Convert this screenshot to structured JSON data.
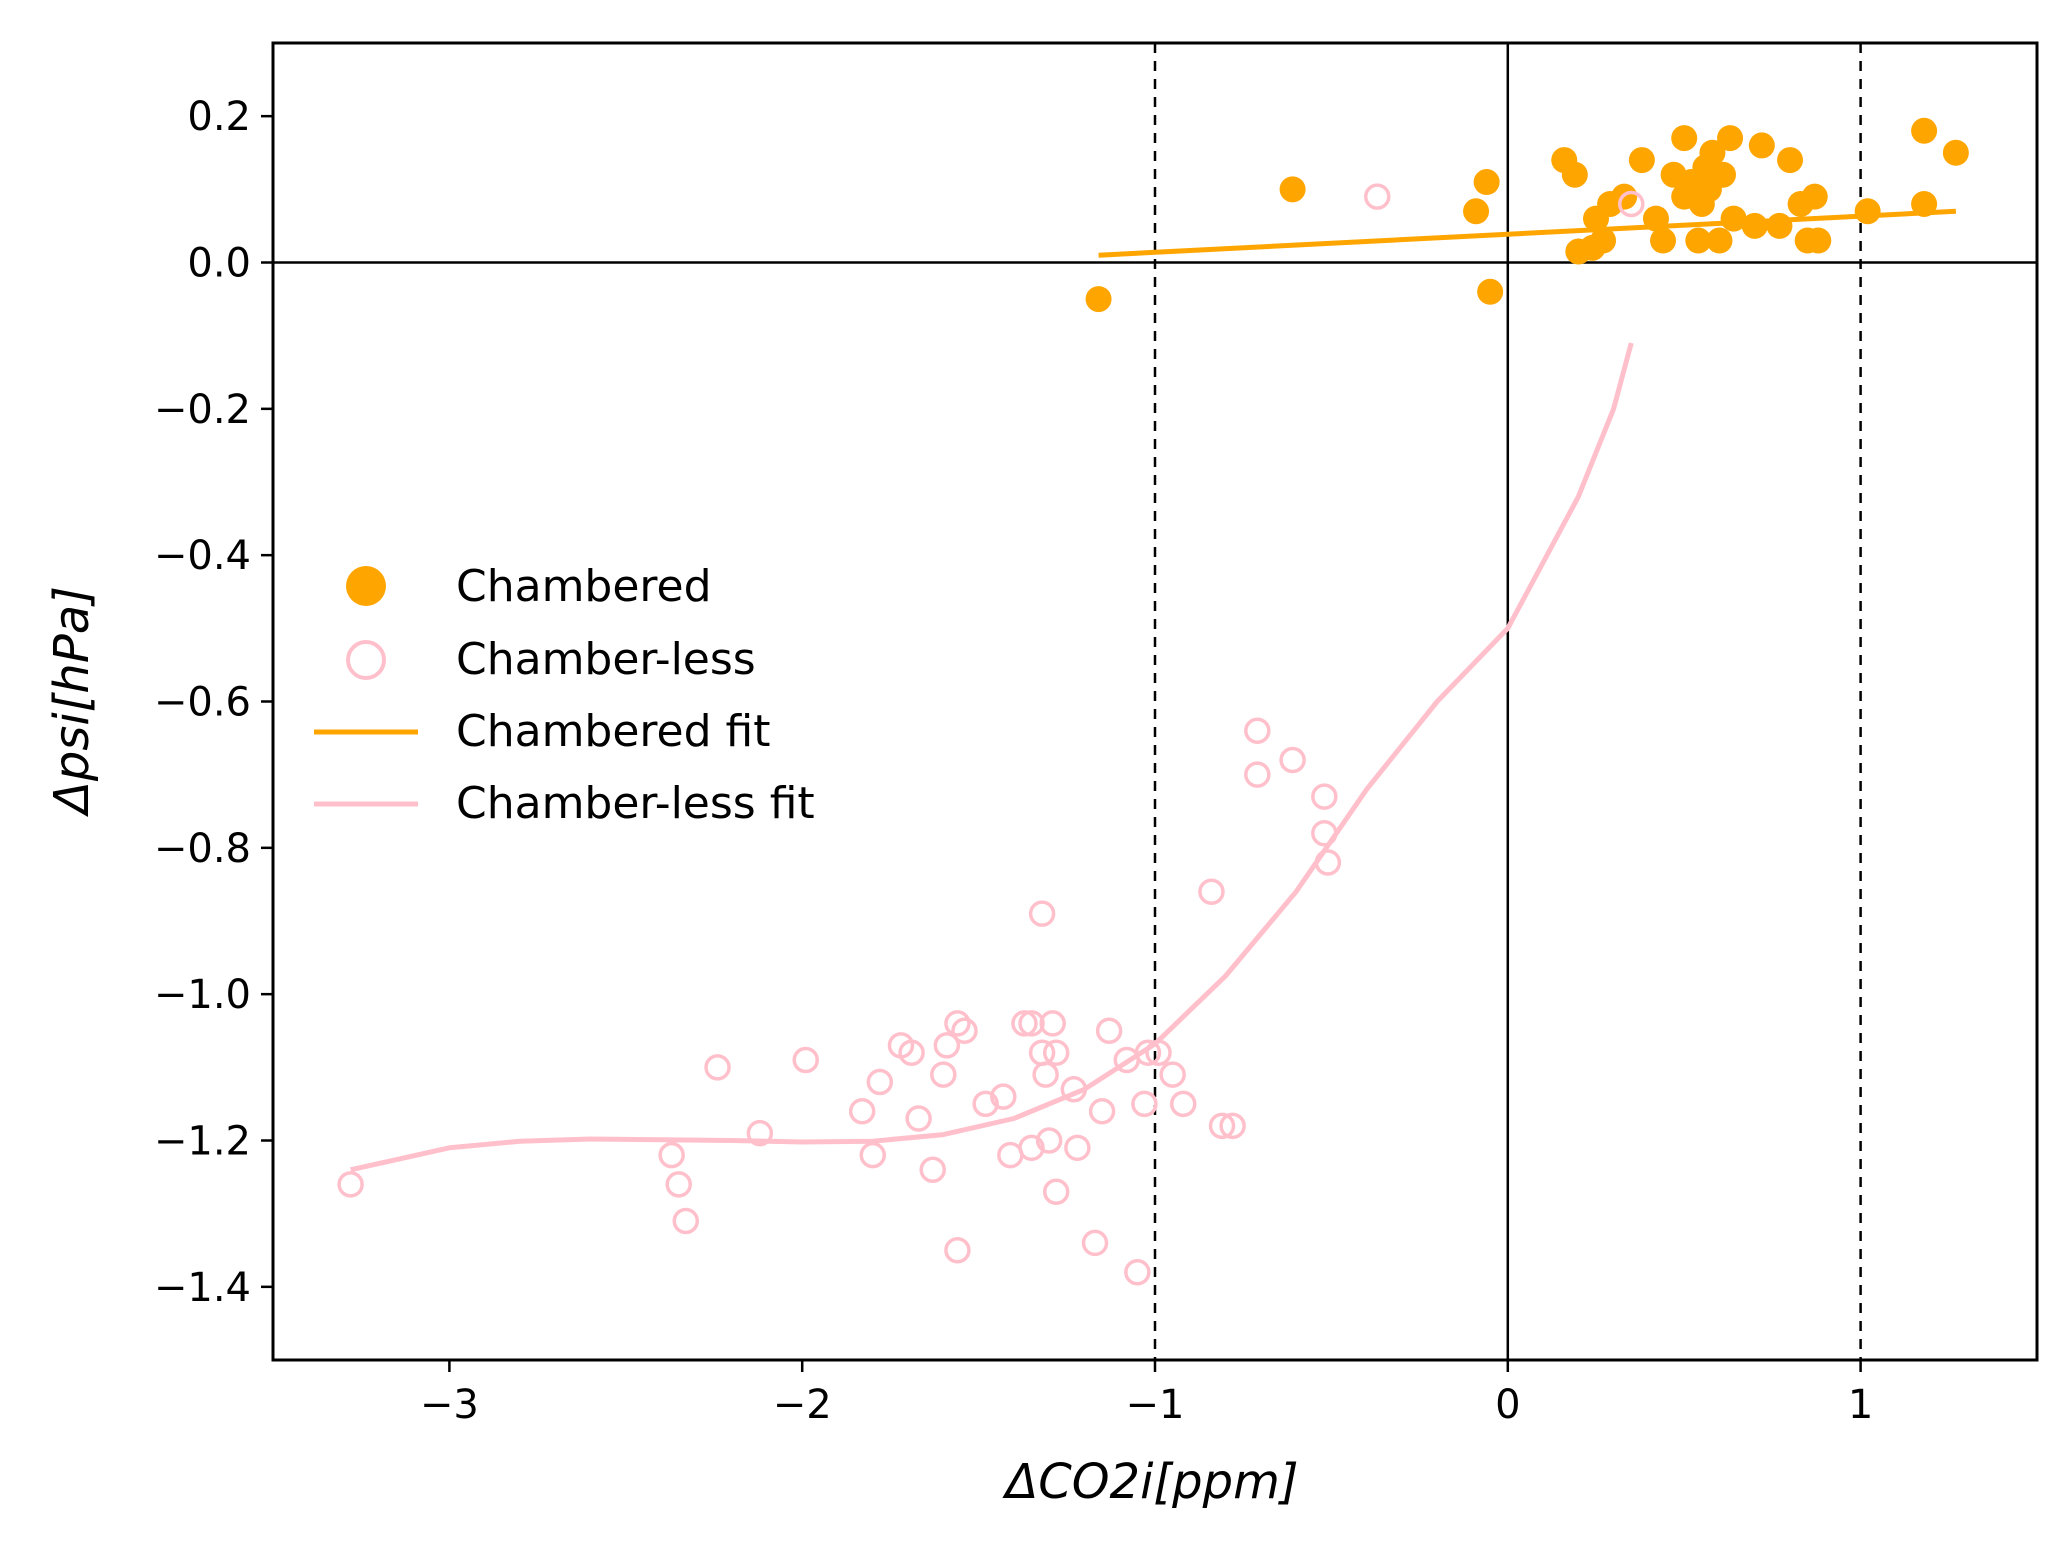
{
  "chart_data": {
    "type": "scatter",
    "xlabel": "ΔCO2i[ppm]",
    "ylabel": "Δpsi[hPa]",
    "xlim": [
      -3.5,
      1.5
    ],
    "ylim": [
      -1.5,
      0.3
    ],
    "x_ticks": [
      -3,
      -2,
      -1,
      0,
      1
    ],
    "x_tick_labels": [
      "−3",
      "−2",
      "−1",
      "0",
      "1"
    ],
    "y_ticks": [
      0.2,
      0.0,
      -0.2,
      -0.4,
      -0.6,
      -0.8,
      -1.0,
      -1.2,
      -1.4
    ],
    "y_tick_labels": [
      "0.2",
      "0.0",
      "−0.2",
      "−0.4",
      "−0.6",
      "−0.8",
      "−1.0",
      "−1.2",
      "−1.4"
    ],
    "grid": false,
    "reference_lines": {
      "vertical_solid": [
        0
      ],
      "horizontal_solid": [
        0
      ],
      "vertical_dashed": [
        -1,
        1
      ]
    },
    "legend_position": "center-left",
    "series": [
      {
        "name": "Chambered",
        "kind": "scatter",
        "marker": "filled-circle",
        "color": "#FFA500",
        "points": [
          [
            -1.16,
            -0.05
          ],
          [
            -0.61,
            0.1
          ],
          [
            -0.09,
            0.07
          ],
          [
            -0.06,
            0.11
          ],
          [
            -0.05,
            -0.04
          ],
          [
            0.16,
            0.14
          ],
          [
            0.19,
            0.12
          ],
          [
            0.2,
            0.015
          ],
          [
            0.24,
            0.02
          ],
          [
            0.25,
            0.06
          ],
          [
            0.27,
            0.03
          ],
          [
            0.29,
            0.08
          ],
          [
            0.33,
            0.09
          ],
          [
            0.38,
            0.14
          ],
          [
            0.42,
            0.06
          ],
          [
            0.44,
            0.03
          ],
          [
            0.47,
            0.12
          ],
          [
            0.5,
            0.17
          ],
          [
            0.5,
            0.09
          ],
          [
            0.52,
            0.11
          ],
          [
            0.54,
            0.03
          ],
          [
            0.55,
            0.08
          ],
          [
            0.56,
            0.13
          ],
          [
            0.57,
            0.1
          ],
          [
            0.58,
            0.15
          ],
          [
            0.6,
            0.03
          ],
          [
            0.61,
            0.12
          ],
          [
            0.63,
            0.17
          ],
          [
            0.64,
            0.06
          ],
          [
            0.7,
            0.05
          ],
          [
            0.72,
            0.16
          ],
          [
            0.77,
            0.05
          ],
          [
            0.8,
            0.14
          ],
          [
            0.83,
            0.08
          ],
          [
            0.85,
            0.03
          ],
          [
            0.87,
            0.09
          ],
          [
            0.88,
            0.03
          ],
          [
            1.02,
            0.07
          ],
          [
            1.18,
            0.08
          ],
          [
            1.18,
            0.18
          ],
          [
            1.27,
            0.15
          ]
        ]
      },
      {
        "name": "Chamber-less",
        "kind": "scatter",
        "marker": "open-circle",
        "color": "#FFC0CB",
        "points": [
          [
            -3.28,
            -1.26
          ],
          [
            -2.37,
            -1.22
          ],
          [
            -2.35,
            -1.26
          ],
          [
            -2.33,
            -1.31
          ],
          [
            -2.24,
            -1.1
          ],
          [
            -2.12,
            -1.19
          ],
          [
            -1.99,
            -1.09
          ],
          [
            -1.83,
            -1.16
          ],
          [
            -1.8,
            -1.22
          ],
          [
            -1.78,
            -1.12
          ],
          [
            -1.72,
            -1.07
          ],
          [
            -1.69,
            -1.08
          ],
          [
            -1.67,
            -1.17
          ],
          [
            -1.63,
            -1.24
          ],
          [
            -1.6,
            -1.11
          ],
          [
            -1.59,
            -1.07
          ],
          [
            -1.56,
            -1.35
          ],
          [
            -1.56,
            -1.04
          ],
          [
            -1.54,
            -1.05
          ],
          [
            -1.48,
            -1.15
          ],
          [
            -1.43,
            -1.14
          ],
          [
            -1.41,
            -1.22
          ],
          [
            -1.37,
            -1.04
          ],
          [
            -1.35,
            -1.04
          ],
          [
            -1.35,
            -1.21
          ],
          [
            -1.32,
            -0.89
          ],
          [
            -1.32,
            -1.08
          ],
          [
            -1.31,
            -1.11
          ],
          [
            -1.3,
            -1.2
          ],
          [
            -1.29,
            -1.04
          ],
          [
            -1.28,
            -1.08
          ],
          [
            -1.28,
            -1.27
          ],
          [
            -1.23,
            -1.13
          ],
          [
            -1.22,
            -1.21
          ],
          [
            -1.17,
            -1.34
          ],
          [
            -1.15,
            -1.16
          ],
          [
            -1.13,
            -1.05
          ],
          [
            -1.08,
            -1.09
          ],
          [
            -1.05,
            -1.38
          ],
          [
            -1.03,
            -1.15
          ],
          [
            -1.02,
            -1.08
          ],
          [
            -0.99,
            -1.08
          ],
          [
            -0.95,
            -1.11
          ],
          [
            -0.92,
            -1.15
          ],
          [
            -0.84,
            -0.86
          ],
          [
            -0.81,
            -1.18
          ],
          [
            -0.78,
            -1.18
          ],
          [
            -0.71,
            -0.64
          ],
          [
            -0.71,
            -0.7
          ],
          [
            -0.61,
            -0.68
          ],
          [
            -0.52,
            -0.73
          ],
          [
            -0.52,
            -0.78
          ],
          [
            -0.51,
            -0.82
          ],
          [
            -0.37,
            0.09
          ],
          [
            0.35,
            0.08
          ]
        ]
      },
      {
        "name": "Chambered fit",
        "kind": "line",
        "color": "#FFA500",
        "points": [
          [
            -1.16,
            0.01
          ],
          [
            1.27,
            0.07
          ]
        ]
      },
      {
        "name": "Chamber-less fit",
        "kind": "line",
        "color": "#FFC0CB",
        "points": [
          [
            -3.28,
            -1.24
          ],
          [
            -3.0,
            -1.21
          ],
          [
            -2.8,
            -1.201
          ],
          [
            -2.6,
            -1.198
          ],
          [
            -2.4,
            -1.199
          ],
          [
            -2.2,
            -1.2
          ],
          [
            -2.0,
            -1.202
          ],
          [
            -1.8,
            -1.201
          ],
          [
            -1.6,
            -1.192
          ],
          [
            -1.4,
            -1.17
          ],
          [
            -1.2,
            -1.13
          ],
          [
            -1.0,
            -1.068
          ],
          [
            -0.8,
            -0.975
          ],
          [
            -0.6,
            -0.86
          ],
          [
            -0.4,
            -0.72
          ],
          [
            -0.2,
            -0.6
          ],
          [
            0.0,
            -0.5
          ],
          [
            0.1,
            -0.41
          ],
          [
            0.2,
            -0.32
          ],
          [
            0.3,
            -0.2
          ],
          [
            0.35,
            -0.11
          ]
        ]
      }
    ]
  }
}
